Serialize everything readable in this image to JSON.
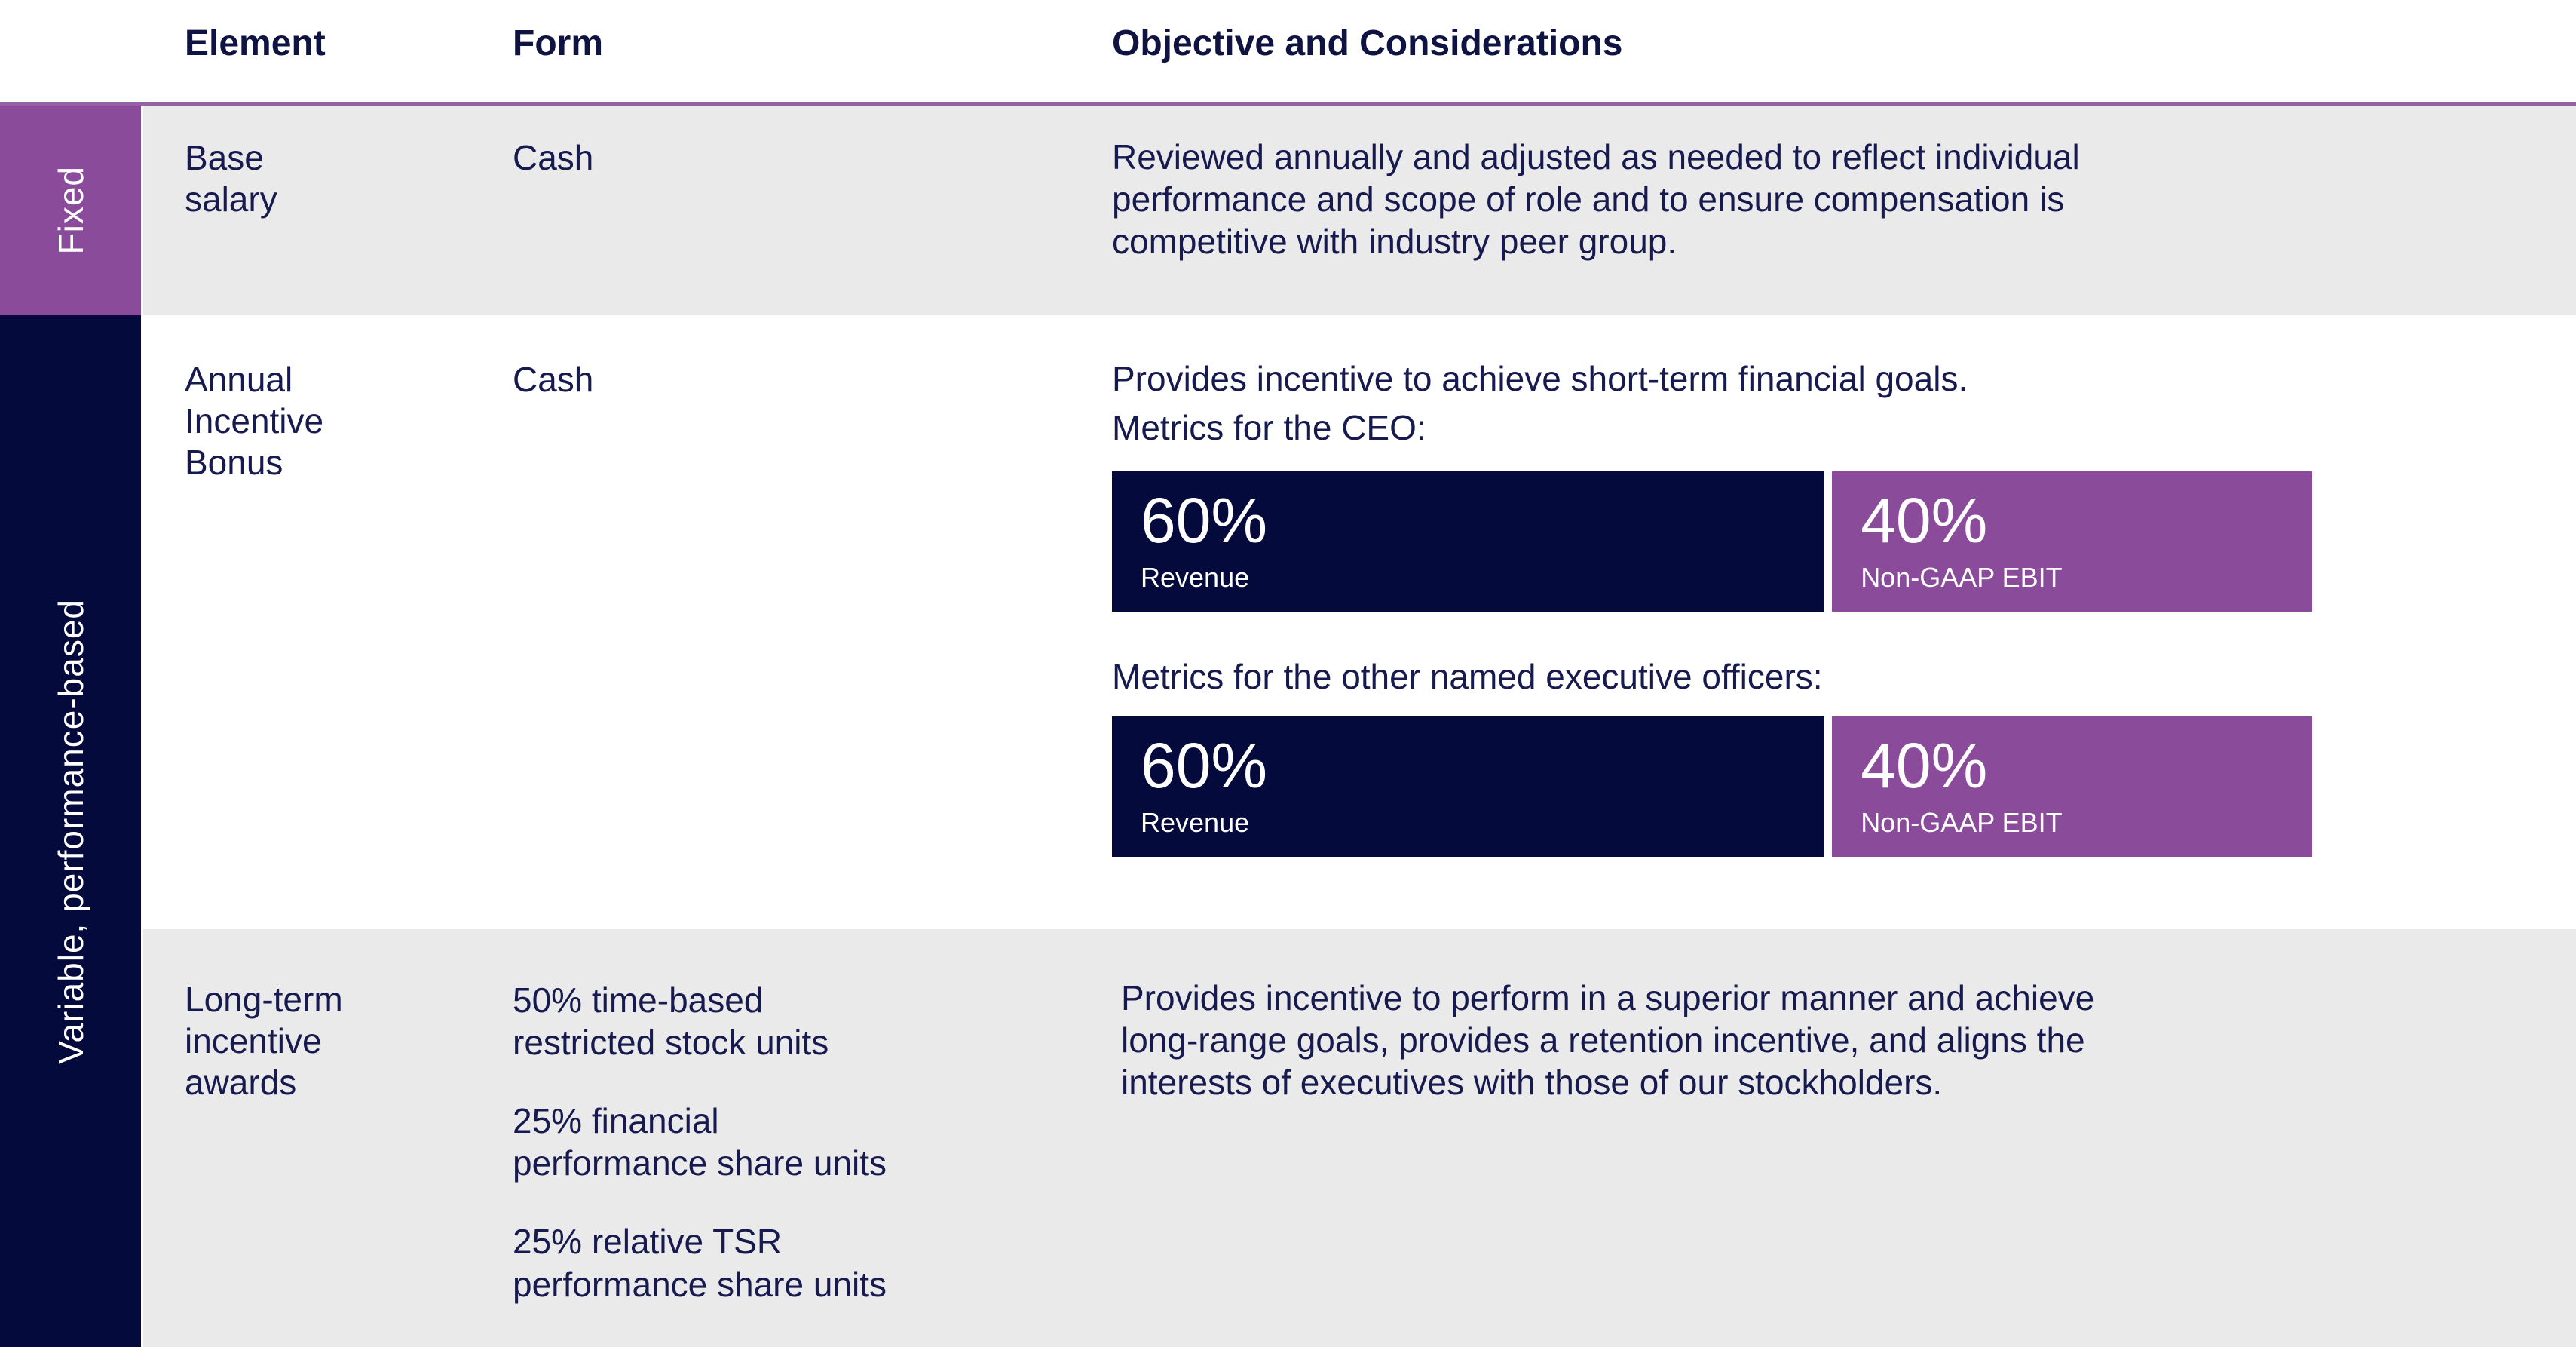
{
  "colors": {
    "navy": "#040A3C",
    "purple": "#8A4B9B",
    "purple_rule": "#9660A4",
    "row_gray": "#EAEAEA",
    "text_navy": "#171A4F",
    "white": "#FFFFFF"
  },
  "header": {
    "columns": [
      "Element",
      "Form",
      "Objective and Considerations"
    ]
  },
  "sidebar": {
    "fixed_label": "Fixed",
    "variable_label": "Variable, performance-based"
  },
  "rows": [
    {
      "element": "Base\nsalary",
      "form": "Cash",
      "objective": "Reviewed annually and adjusted as needed to reflect individual\nperformance and scope of role and to ensure compensation is\ncompetitive with industry peer group."
    },
    {
      "element": "Annual\nIncentive\nBonus",
      "form": "Cash",
      "objective_intro": "Provides incentive to achieve short-term financial goals.\nMetrics for the CEO:",
      "metrics_ceo": {
        "segments": [
          {
            "pct": "60%",
            "width": "60%",
            "metric": "Revenue"
          },
          {
            "pct": "40%",
            "width": "40%",
            "metric": "Non-GAAP EBIT"
          }
        ]
      },
      "other_label": "Metrics for the other named executive officers:",
      "metrics_other": {
        "segments": [
          {
            "pct": "60%",
            "width": "60%",
            "metric": "Revenue"
          },
          {
            "pct": "40%",
            "width": "40%",
            "metric": "Non-GAAP EBIT"
          }
        ]
      }
    },
    {
      "element": "Long-term\nincentive\nawards",
      "form_items": [
        "50% time-based\nrestricted stock units",
        "25% financial\nperformance share units",
        "25% relative TSR\nperformance share units"
      ],
      "objective": "Provides incentive to perform in a superior manner and achieve\nlong-range goals, provides a retention incentive, and aligns the\ninterests of executives with those of our stockholders."
    }
  ]
}
